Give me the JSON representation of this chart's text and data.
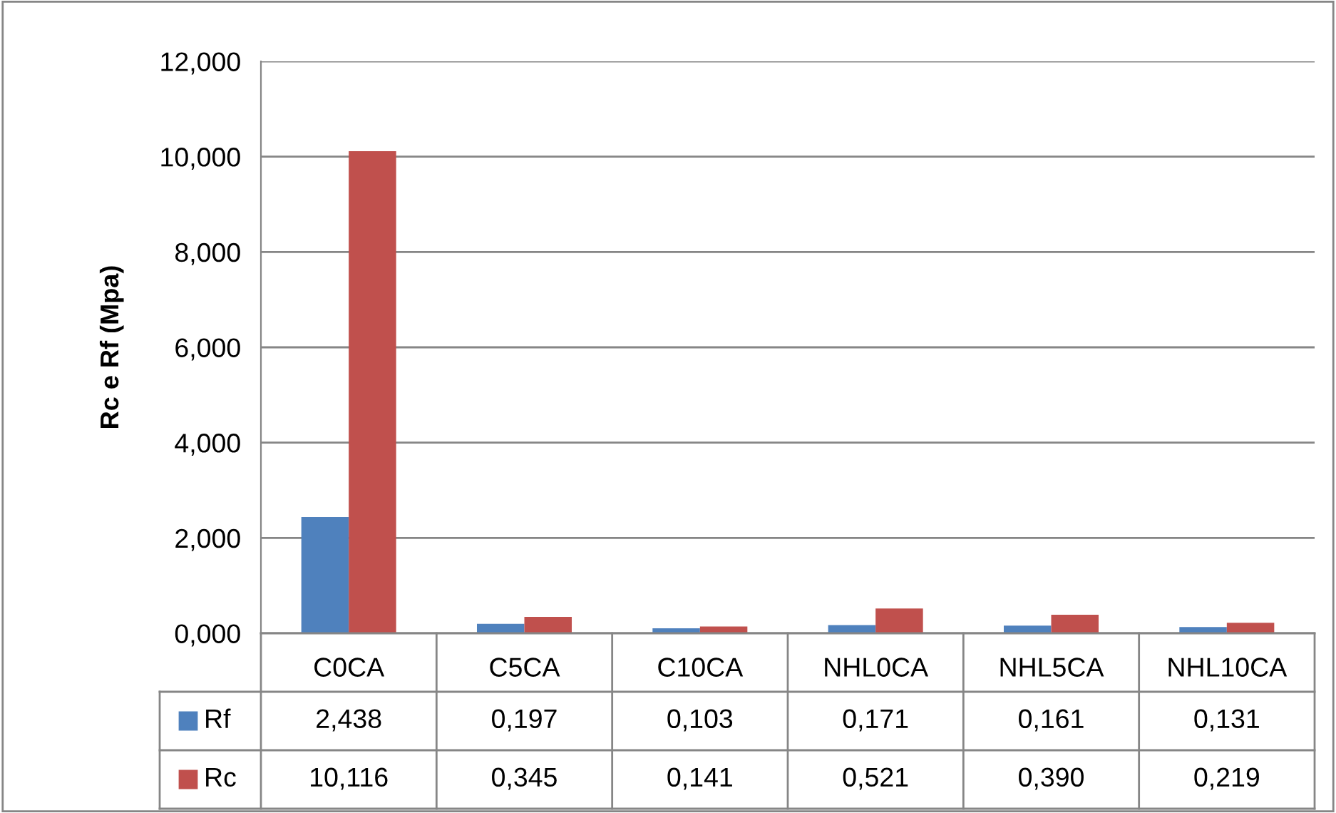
{
  "chart_data": {
    "type": "bar",
    "ylabel": "Rc e Rf (Mpa)",
    "categories": [
      "C0CA",
      "C5CA",
      "C10CA",
      "NHL0CA",
      "NHL5CA",
      "NHL10CA"
    ],
    "series": [
      {
        "name": "Rf",
        "color": "#4f81bd",
        "values": [
          2.438,
          0.197,
          0.103,
          0.171,
          0.161,
          0.131
        ],
        "value_labels": [
          "2,438",
          "0,197",
          "0,103",
          "0,171",
          "0,161",
          "0,131"
        ]
      },
      {
        "name": "Rc",
        "color": "#c0504d",
        "values": [
          10.116,
          0.345,
          0.141,
          0.521,
          0.39,
          0.219
        ],
        "value_labels": [
          "10,116",
          "0,345",
          "0,141",
          "0,521",
          "0,390",
          "0,219"
        ]
      }
    ],
    "ylim": [
      0,
      12
    ],
    "yticks": [
      {
        "value": 0,
        "label": "0,000"
      },
      {
        "value": 2,
        "label": "2,000"
      },
      {
        "value": 4,
        "label": "4,000"
      },
      {
        "value": 6,
        "label": "6,000"
      },
      {
        "value": 8,
        "label": "8,000"
      },
      {
        "value": 10,
        "label": "10,000"
      },
      {
        "value": 12,
        "label": "12,000"
      }
    ],
    "grid": "y",
    "legend": "bottom"
  }
}
